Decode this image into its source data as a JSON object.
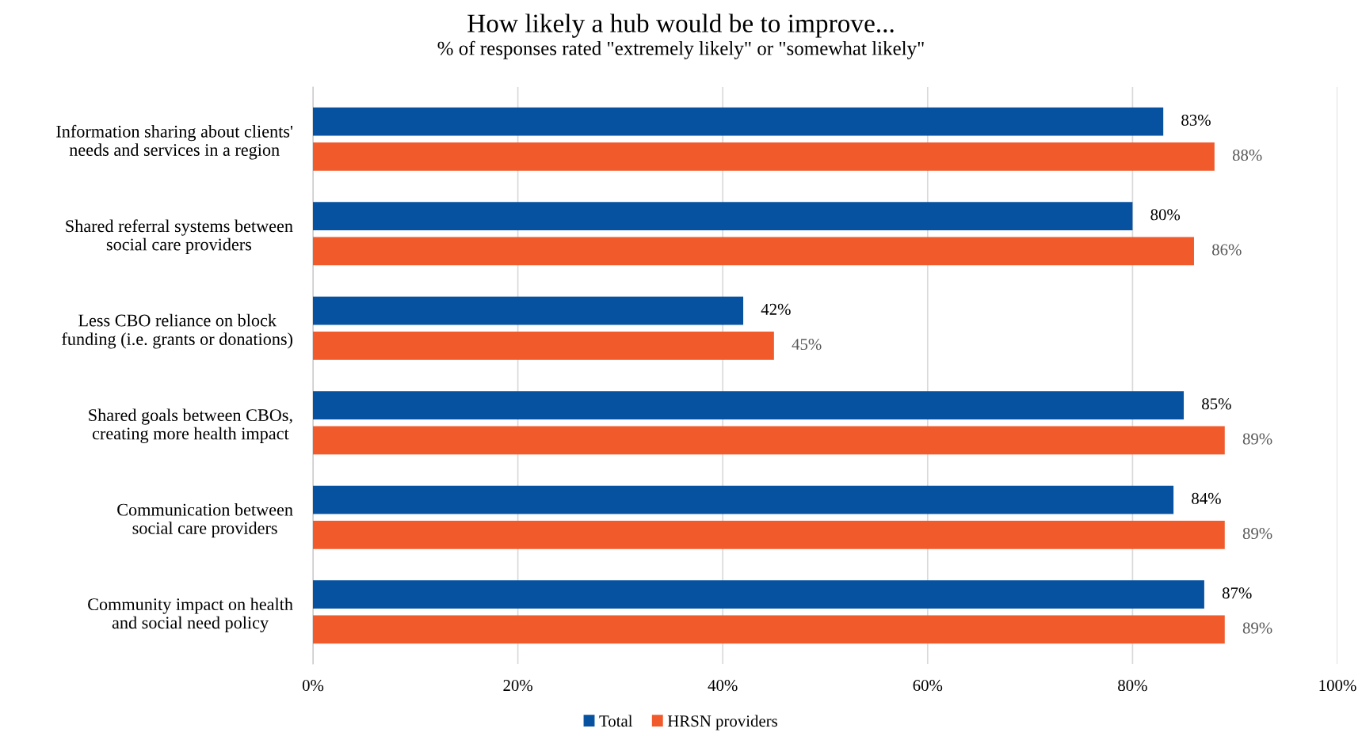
{
  "chart_data": {
    "type": "bar",
    "orientation": "horizontal",
    "title": "How likely a hub would be to improve...",
    "subtitle": "% of responses rated \"extremely likely\" or \"somewhat likely\"",
    "categories": [
      "Information sharing about clients'\nneeds and services in a region",
      "Shared referral systems between\nsocial care providers",
      "Less CBO reliance on block\nfunding (i.e. grants or donations)",
      "Shared goals between CBOs,\ncreating more health impact",
      "Communication between\nsocial care providers",
      "Community impact on health\nand social need policy"
    ],
    "series": [
      {
        "name": "Total",
        "color": "#0752a0",
        "values": [
          83,
          80,
          42,
          85,
          84,
          87
        ],
        "value_labels": [
          "83%",
          "80%",
          "42%",
          "85%",
          "84%",
          "87%"
        ]
      },
      {
        "name": "HRSN providers",
        "color": "#f15a2b",
        "values": [
          88,
          86,
          45,
          89,
          89,
          89
        ],
        "value_labels": [
          "88%",
          "86%",
          "45%",
          "89%",
          "89%",
          "89%"
        ]
      }
    ],
    "xlim": [
      0,
      100
    ],
    "xticks": [
      {
        "value": 0,
        "label": "0%"
      },
      {
        "value": 20,
        "label": "20%"
      },
      {
        "value": 40,
        "label": "40%"
      },
      {
        "value": 60,
        "label": "60%"
      },
      {
        "value": 80,
        "label": "80%"
      },
      {
        "value": 100,
        "label": "100%"
      }
    ],
    "grid": "x",
    "legend": "bottom"
  }
}
